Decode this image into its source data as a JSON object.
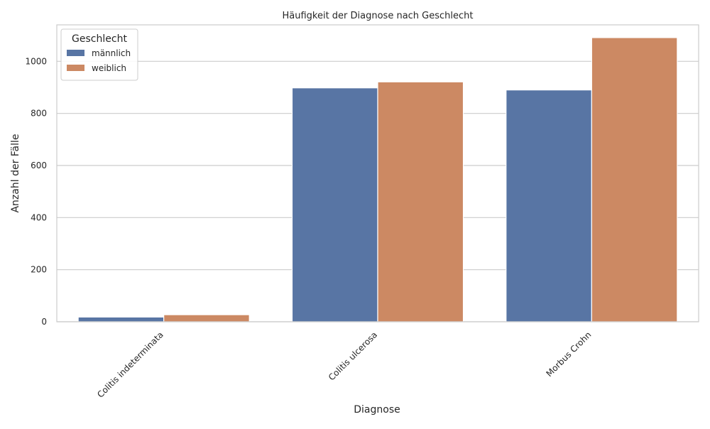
{
  "chart_data": {
    "type": "bar",
    "title": "Häufigkeit der Diagnose nach Geschlecht",
    "xlabel": "Diagnose",
    "ylabel": "Anzahl der Fälle",
    "categories": [
      "Colitis indeterminata",
      "Colitis ulcerosa",
      "Morbus Crohn"
    ],
    "series": [
      {
        "name": "männlich",
        "values": [
          18,
          898,
          890
        ],
        "color": "#5875a4"
      },
      {
        "name": "weiblich",
        "values": [
          27,
          921,
          1091
        ],
        "color": "#cc8963"
      }
    ],
    "ylim": [
      0,
      1140
    ],
    "yticks": [
      0,
      200,
      400,
      600,
      800,
      1000
    ],
    "grid": true,
    "legend": {
      "title": "Geschlecht",
      "placement": "top-left"
    }
  }
}
